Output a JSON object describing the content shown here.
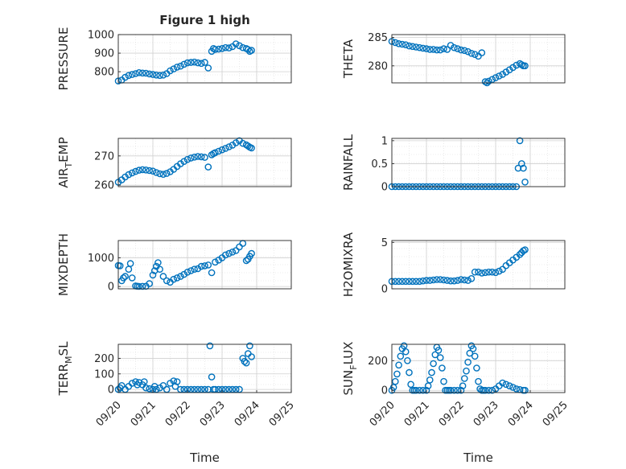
{
  "figure": {
    "title": "Figure 1 high",
    "marker_color": "#0072BD",
    "grid_color": "#dcdcdc",
    "axis_color": "#262626"
  },
  "chart_data": [
    {
      "type": "scatter",
      "name": "pressure",
      "title": "Figure 1 high",
      "ylabel": "PRESSURE",
      "ylabel_sub": null,
      "ylim": [
        740,
        1000
      ],
      "yticks": [
        800,
        900,
        1000
      ],
      "ytick_labels": [
        "800",
        "900",
        "1000"
      ],
      "xlim": [
        0,
        5
      ],
      "xticks": [],
      "xtick_labels": [],
      "xlabel": "",
      "x": [
        0,
        0.1,
        0.2,
        0.3,
        0.4,
        0.5,
        0.6,
        0.7,
        0.8,
        0.9,
        1.0,
        1.1,
        1.2,
        1.3,
        1.4,
        1.5,
        1.6,
        1.7,
        1.8,
        1.9,
        2.0,
        2.1,
        2.2,
        2.3,
        2.4,
        2.5,
        2.6,
        2.7,
        2.75,
        2.8,
        2.9,
        3.0,
        3.1,
        3.2,
        3.3,
        3.4,
        3.5,
        3.6,
        3.7,
        3.75,
        3.8,
        3.85
      ],
      "y": [
        750,
        755,
        770,
        780,
        785,
        790,
        795,
        793,
        792,
        788,
        785,
        782,
        780,
        782,
        790,
        805,
        815,
        825,
        830,
        840,
        848,
        850,
        852,
        848,
        845,
        850,
        820,
        910,
        925,
        920,
        922,
        925,
        930,
        928,
        935,
        950,
        940,
        930,
        925,
        920,
        910,
        915
      ]
    },
    {
      "type": "scatter",
      "name": "theta",
      "title": "",
      "ylabel": "THETA",
      "ylabel_sub": null,
      "ylim": [
        277,
        285.5
      ],
      "yticks": [
        280,
        285
      ],
      "ytick_labels": [
        "280",
        "285"
      ],
      "xlim": [
        0,
        5
      ],
      "xticks": [],
      "xtick_labels": [],
      "xlabel": "",
      "x": [
        0,
        0.1,
        0.2,
        0.3,
        0.4,
        0.5,
        0.6,
        0.7,
        0.8,
        0.9,
        1.0,
        1.1,
        1.2,
        1.3,
        1.4,
        1.5,
        1.6,
        1.7,
        1.8,
        1.9,
        2.0,
        2.1,
        2.2,
        2.3,
        2.4,
        2.5,
        2.6,
        2.7,
        2.75,
        2.8,
        2.9,
        3.0,
        3.1,
        3.2,
        3.3,
        3.4,
        3.5,
        3.6,
        3.7,
        3.75,
        3.8,
        3.85
      ],
      "y": [
        284.3,
        284.1,
        283.9,
        283.8,
        283.7,
        283.5,
        283.4,
        283.3,
        283.2,
        283.1,
        283.0,
        282.9,
        282.9,
        282.8,
        282.8,
        283.0,
        282.9,
        283.6,
        283.2,
        283.0,
        282.8,
        282.7,
        282.5,
        282.2,
        282.0,
        281.7,
        282.3,
        277.2,
        277.0,
        277.3,
        277.6,
        277.9,
        278.2,
        278.5,
        278.9,
        279.3,
        279.7,
        280.1,
        280.4,
        280.2,
        280.0,
        280.0
      ]
    },
    {
      "type": "scatter",
      "name": "air-temp",
      "title": "",
      "ylabel": "AIR",
      "ylabel_sub": "T",
      "ylabel_rest": "EMP",
      "ylim": [
        259.5,
        276
      ],
      "yticks": [
        260,
        270
      ],
      "ytick_labels": [
        "260",
        "270"
      ],
      "xlim": [
        0,
        5
      ],
      "xticks": [],
      "xtick_labels": [],
      "xlabel": "",
      "x": [
        0,
        0.1,
        0.2,
        0.3,
        0.4,
        0.5,
        0.6,
        0.7,
        0.8,
        0.9,
        1.0,
        1.1,
        1.2,
        1.3,
        1.4,
        1.5,
        1.6,
        1.7,
        1.8,
        1.9,
        2.0,
        2.1,
        2.2,
        2.3,
        2.4,
        2.5,
        2.6,
        2.7,
        2.75,
        2.8,
        2.9,
        3.0,
        3.1,
        3.2,
        3.3,
        3.4,
        3.5,
        3.6,
        3.7,
        3.75,
        3.8,
        3.85
      ],
      "y": [
        261.0,
        261.8,
        262.8,
        263.6,
        264.2,
        264.7,
        265.1,
        265.3,
        265.2,
        265.0,
        264.8,
        264.3,
        263.9,
        263.7,
        264.0,
        264.6,
        265.4,
        266.4,
        267.3,
        268.1,
        268.8,
        269.3,
        269.6,
        269.8,
        269.7,
        269.5,
        266.2,
        270.4,
        270.8,
        271.1,
        271.6,
        272.1,
        272.6,
        273.1,
        273.7,
        274.5,
        275.2,
        274.3,
        273.8,
        273.4,
        273.0,
        272.7
      ]
    },
    {
      "type": "scatter",
      "name": "rainfall",
      "title": "",
      "ylabel": "RAINFALL",
      "ylabel_sub": null,
      "ylim": [
        0,
        1.05
      ],
      "yticks": [
        0,
        0.5,
        1
      ],
      "ytick_labels": [
        "0",
        "0.5",
        "1"
      ],
      "xlim": [
        0,
        5
      ],
      "xticks": [],
      "xtick_labels": [],
      "xlabel": "",
      "x": [
        0,
        0.1,
        0.2,
        0.3,
        0.4,
        0.5,
        0.6,
        0.7,
        0.8,
        0.9,
        1.0,
        1.1,
        1.2,
        1.3,
        1.4,
        1.5,
        1.6,
        1.7,
        1.8,
        1.9,
        2.0,
        2.1,
        2.2,
        2.3,
        2.4,
        2.5,
        2.6,
        2.7,
        2.8,
        2.9,
        3.0,
        3.1,
        3.2,
        3.3,
        3.4,
        3.5,
        3.6,
        3.65,
        3.7,
        3.75,
        3.8,
        3.85
      ],
      "y": [
        0,
        0,
        0,
        0,
        0,
        0,
        0,
        0,
        0,
        0,
        0,
        0,
        0,
        0,
        0,
        0,
        0,
        0,
        0,
        0,
        0,
        0,
        0,
        0,
        0,
        0,
        0,
        0,
        0,
        0,
        0,
        0,
        0,
        0,
        0,
        0,
        0,
        0.4,
        1.0,
        0.5,
        0.4,
        0.1
      ]
    },
    {
      "type": "scatter",
      "name": "mixdepth",
      "title": "",
      "ylabel": "MIXDEPTH",
      "ylabel_sub": null,
      "ylim": [
        -80,
        1600
      ],
      "yticks": [
        0,
        1000
      ],
      "ytick_labels": [
        "0",
        "1000"
      ],
      "xlim": [
        0,
        5
      ],
      "xticks": [],
      "xtick_labels": [],
      "xlabel": "",
      "x": [
        0,
        0.05,
        0.1,
        0.15,
        0.2,
        0.3,
        0.35,
        0.4,
        0.5,
        0.55,
        0.6,
        0.7,
        0.8,
        0.9,
        1.0,
        1.05,
        1.1,
        1.15,
        1.2,
        1.3,
        1.4,
        1.5,
        1.6,
        1.7,
        1.8,
        1.9,
        2.0,
        2.1,
        2.2,
        2.3,
        2.4,
        2.5,
        2.6,
        2.7,
        2.8,
        2.9,
        3.0,
        3.1,
        3.2,
        3.3,
        3.4,
        3.5,
        3.6,
        3.7,
        3.75,
        3.8,
        3.85
      ],
      "y": [
        730,
        720,
        200,
        300,
        350,
        600,
        800,
        300,
        20,
        10,
        5,
        8,
        10,
        100,
        400,
        550,
        700,
        830,
        600,
        350,
        200,
        150,
        250,
        300,
        350,
        420,
        500,
        550,
        600,
        620,
        700,
        720,
        750,
        480,
        850,
        920,
        1000,
        1100,
        1150,
        1200,
        1250,
        1380,
        1500,
        900,
        950,
        1050,
        1150
      ]
    },
    {
      "type": "scatter",
      "name": "h2omixra",
      "title": "",
      "ylabel": "H2OMIXRA",
      "ylabel_sub": null,
      "ylim": [
        0,
        5.2
      ],
      "yticks": [
        0,
        5
      ],
      "ytick_labels": [
        "0",
        "5"
      ],
      "xlim": [
        0,
        5
      ],
      "xticks": [],
      "xtick_labels": [],
      "xlabel": "",
      "x": [
        0,
        0.1,
        0.2,
        0.3,
        0.4,
        0.5,
        0.6,
        0.7,
        0.8,
        0.9,
        1.0,
        1.1,
        1.2,
        1.3,
        1.4,
        1.5,
        1.6,
        1.7,
        1.8,
        1.9,
        2.0,
        2.1,
        2.2,
        2.3,
        2.4,
        2.5,
        2.6,
        2.7,
        2.8,
        2.9,
        3.0,
        3.1,
        3.2,
        3.3,
        3.4,
        3.5,
        3.6,
        3.7,
        3.75,
        3.8,
        3.85
      ],
      "y": [
        0.8,
        0.8,
        0.8,
        0.8,
        0.8,
        0.8,
        0.8,
        0.8,
        0.8,
        0.85,
        0.9,
        0.9,
        0.95,
        1.0,
        1.0,
        0.95,
        0.9,
        0.85,
        0.85,
        0.9,
        1.0,
        0.95,
        0.9,
        1.1,
        1.8,
        1.8,
        1.7,
        1.75,
        1.8,
        1.8,
        1.75,
        1.9,
        2.1,
        2.5,
        2.8,
        3.1,
        3.4,
        3.7,
        3.9,
        4.1,
        4.2
      ]
    },
    {
      "type": "scatter",
      "name": "terr-msl",
      "title": "",
      "ylabel": "TERR",
      "ylabel_sub": "M",
      "ylabel_rest": "SL",
      "ylim": [
        -20,
        290
      ],
      "yticks": [
        0,
        100,
        200
      ],
      "ytick_labels": [
        "0",
        "100",
        "200"
      ],
      "xlim": [
        0,
        5
      ],
      "xticks": [
        0,
        1,
        2,
        3,
        4,
        5
      ],
      "xtick_labels": [
        "09/20",
        "09/21",
        "09/22",
        "09/23",
        "09/24",
        "09/25"
      ],
      "xlabel": "Time",
      "x": [
        0,
        0.05,
        0.1,
        0.2,
        0.3,
        0.4,
        0.5,
        0.55,
        0.6,
        0.7,
        0.75,
        0.8,
        0.9,
        1.0,
        1.05,
        1.1,
        1.2,
        1.3,
        1.4,
        1.5,
        1.6,
        1.65,
        1.7,
        1.8,
        1.9,
        2.0,
        2.1,
        2.2,
        2.3,
        2.4,
        2.5,
        2.6,
        2.65,
        2.7,
        2.75,
        2.8,
        2.9,
        3.0,
        3.1,
        3.2,
        3.3,
        3.4,
        3.5,
        3.6,
        3.65,
        3.7,
        3.75,
        3.8,
        3.85
      ],
      "y": [
        0,
        10,
        25,
        0,
        20,
        40,
        50,
        30,
        45,
        30,
        50,
        10,
        5,
        0,
        20,
        0,
        10,
        25,
        0,
        40,
        55,
        20,
        50,
        0,
        0,
        0,
        0,
        0,
        0,
        0,
        0,
        0,
        280,
        80,
        0,
        0,
        0,
        0,
        0,
        0,
        0,
        0,
        0,
        200,
        180,
        170,
        230,
        280,
        210
      ]
    },
    {
      "type": "scatter",
      "name": "sun-flux",
      "title": "",
      "ylabel": "SUN",
      "ylabel_sub": "F",
      "ylabel_rest": "LUX",
      "ylim": [
        -15,
        310
      ],
      "yticks": [
        0,
        200
      ],
      "ytick_labels": [
        "0",
        "200"
      ],
      "xlim": [
        0,
        5
      ],
      "xticks": [
        0,
        1,
        2,
        3,
        4,
        5
      ],
      "xtick_labels": [
        "09/20",
        "09/21",
        "09/22",
        "09/23",
        "09/24",
        "09/25"
      ],
      "xlabel": "Time",
      "x": [
        0,
        0.05,
        0.1,
        0.15,
        0.2,
        0.25,
        0.3,
        0.35,
        0.4,
        0.45,
        0.5,
        0.55,
        0.6,
        0.65,
        0.7,
        0.8,
        0.9,
        1.0,
        1.05,
        1.1,
        1.15,
        1.2,
        1.25,
        1.3,
        1.35,
        1.4,
        1.45,
        1.5,
        1.55,
        1.6,
        1.65,
        1.7,
        1.8,
        1.9,
        2.0,
        2.05,
        2.1,
        2.15,
        2.2,
        2.25,
        2.3,
        2.35,
        2.4,
        2.45,
        2.5,
        2.55,
        2.6,
        2.65,
        2.7,
        2.8,
        2.9,
        3.0,
        3.1,
        3.2,
        3.3,
        3.4,
        3.5,
        3.6,
        3.7,
        3.8,
        3.85
      ],
      "y": [
        0,
        20,
        60,
        110,
        170,
        230,
        280,
        300,
        260,
        200,
        120,
        40,
        0,
        0,
        0,
        0,
        0,
        0,
        30,
        70,
        120,
        180,
        240,
        290,
        270,
        220,
        150,
        60,
        0,
        0,
        0,
        0,
        0,
        0,
        0,
        30,
        80,
        130,
        190,
        250,
        300,
        280,
        230,
        150,
        60,
        10,
        0,
        0,
        0,
        0,
        0,
        10,
        30,
        50,
        40,
        30,
        20,
        10,
        5,
        0,
        0
      ]
    }
  ]
}
